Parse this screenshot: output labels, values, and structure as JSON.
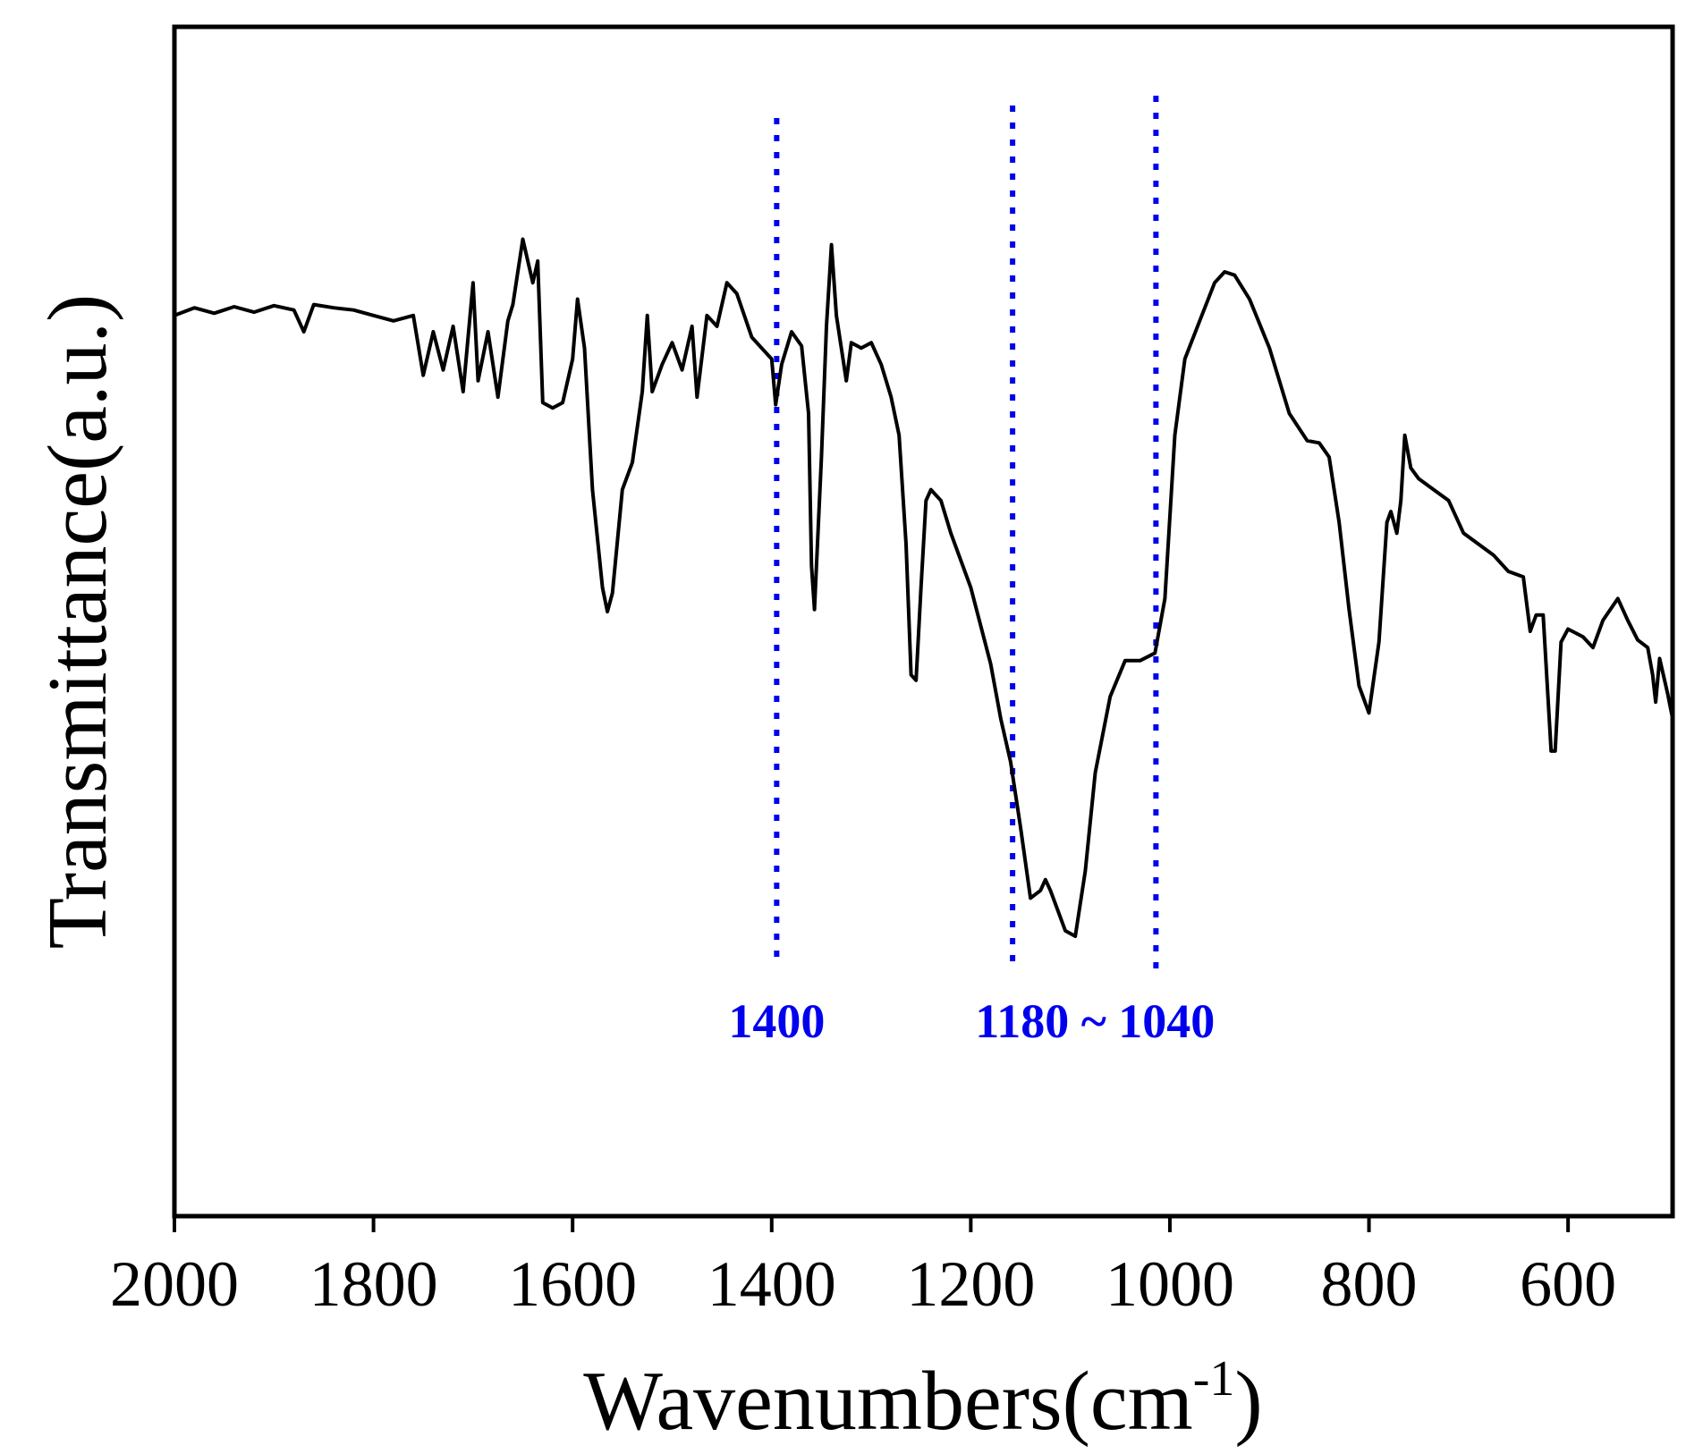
{
  "chart_data": {
    "type": "line",
    "x_label": {
      "text": "Wavenumbers(cm",
      "superscript": "-1",
      "suffix": ")"
    },
    "y_label": "Transmittance(a.u.)",
    "xlim": [
      2000,
      495
    ],
    "ylim": [
      0,
      1092
    ],
    "xticks": [
      2000,
      1800,
      1600,
      1400,
      1200,
      1000,
      800,
      600
    ],
    "x_reversed": true,
    "grid": false,
    "x": [
      2000,
      1980,
      1960,
      1940,
      1920,
      1900,
      1880,
      1870,
      1860,
      1840,
      1820,
      1800,
      1780,
      1760,
      1750,
      1740,
      1730,
      1720,
      1710,
      1700,
      1695,
      1685,
      1675,
      1665,
      1660,
      1650,
      1640,
      1635,
      1630,
      1620,
      1610,
      1600,
      1595,
      1588,
      1580,
      1570,
      1565,
      1560,
      1550,
      1540,
      1530,
      1525,
      1520,
      1510,
      1500,
      1490,
      1480,
      1475,
      1465,
      1455,
      1445,
      1435,
      1420,
      1410,
      1400,
      1396,
      1390,
      1380,
      1370,
      1363,
      1360,
      1357,
      1350,
      1345,
      1340,
      1335,
      1325,
      1320,
      1310,
      1300,
      1290,
      1280,
      1272,
      1265,
      1260,
      1255,
      1250,
      1245,
      1240,
      1230,
      1220,
      1200,
      1180,
      1170,
      1160,
      1150,
      1140,
      1130,
      1125,
      1120,
      1105,
      1095,
      1085,
      1075,
      1060,
      1045,
      1030,
      1015,
      1005,
      995,
      985,
      970,
      955,
      945,
      935,
      920,
      900,
      880,
      862,
      850,
      840,
      830,
      820,
      810,
      800,
      790,
      782,
      778,
      772,
      768,
      764,
      758,
      750,
      735,
      720,
      705,
      690,
      675,
      660,
      645,
      638,
      632,
      625,
      617,
      613,
      607,
      600,
      585,
      575,
      565,
      550,
      540,
      530,
      520,
      515,
      512,
      508,
      500,
      495
    ],
    "series": [
      {
        "name": "spectrum",
        "color": "#000000",
        "values": [
          827,
          834,
          829,
          835,
          830,
          836,
          832,
          812,
          837,
          834,
          832,
          827,
          822,
          827,
          772,
          812,
          777,
          817,
          757,
          857,
          767,
          812,
          752,
          822,
          837,
          897,
          857,
          877,
          747,
          742,
          747,
          787,
          842,
          797,
          667,
          577,
          555,
          572,
          667,
          692,
          757,
          827,
          757,
          782,
          802,
          777,
          817,
          752,
          827,
          817,
          857,
          847,
          807,
          797,
          787,
          745,
          782,
          812,
          799,
          737,
          597,
          557,
          697,
          817,
          892,
          827,
          767,
          802,
          797,
          802,
          782,
          752,
          717,
          617,
          497,
          492,
          577,
          657,
          667,
          657,
          627,
          577,
          507,
          457,
          417,
          357,
          292,
          299,
          309,
          299,
          262,
          257,
          317,
          407,
          477,
          510,
          510,
          517,
          567,
          717,
          787,
          822,
          857,
          867,
          864,
          842,
          797,
          737,
          712,
          710,
          697,
          637,
          557,
          487,
          462,
          527,
          637,
          647,
          627,
          657,
          717,
          687,
          677,
          667,
          657,
          627,
          617,
          607,
          592,
          587,
          537,
          552,
          552,
          427,
          427,
          527,
          539,
          532,
          522,
          547,
          567,
          547,
          529,
          522,
          497,
          472,
          512,
          480,
          457
        ]
      }
    ],
    "markers": {
      "color": "#0000ee",
      "x": [
        1395,
        1158,
        1014
      ]
    },
    "annotations": [
      "1400",
      "1180 ~ 1040"
    ]
  }
}
